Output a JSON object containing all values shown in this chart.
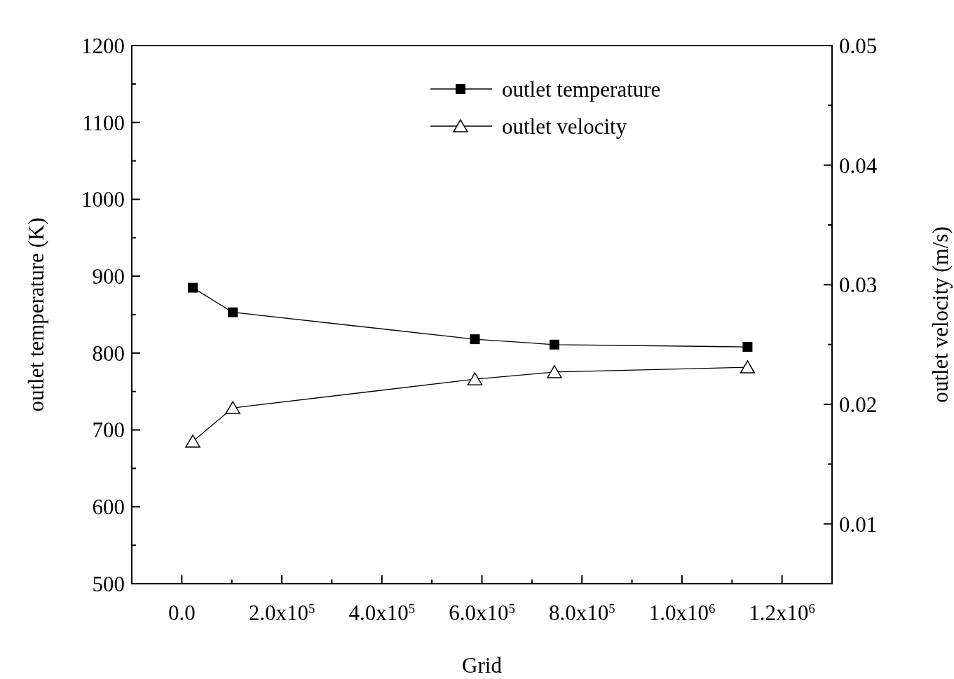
{
  "chart_data": {
    "type": "line",
    "xlabel": "Grid",
    "ylabel": "outlet temperature (K)",
    "y2label": "outlet velocity (m/s)",
    "xlim": [
      -100000,
      1300000
    ],
    "xticks": [
      {
        "value": 0,
        "label": "0.0"
      },
      {
        "value": 200000,
        "label": "2.0x10$^{5}$"
      },
      {
        "value": 400000,
        "label": "4.0x10$^{5}$"
      },
      {
        "value": 600000,
        "label": "6.0x10$^{5}$"
      },
      {
        "value": 800000,
        "label": "8.0x10$^{5}$"
      },
      {
        "value": 1000000,
        "label": "1.0x10$^{6}$"
      },
      {
        "value": 1200000,
        "label": "1.2x10$^{6}$"
      }
    ],
    "ylim": [
      500,
      1200
    ],
    "yticks": [
      500,
      600,
      700,
      800,
      900,
      1000,
      1100,
      1200
    ],
    "y2lim": [
      0.005,
      0.05
    ],
    "y2ticks": [
      0.01,
      0.02,
      0.03,
      0.04,
      0.05
    ],
    "legend": "top right",
    "grid": false,
    "series": [
      {
        "name": "outlet temperature",
        "color": "#000000",
        "marker": "square",
        "x": [
          22000,
          102000,
          586000,
          745000,
          1131000
        ],
        "values": [
          885,
          853,
          818,
          811,
          808
        ]
      },
      {
        "name": "outlet velocity",
        "color": "#000000",
        "marker": "triangle",
        "axis": "y2",
        "x": [
          22000,
          102000,
          586000,
          745000,
          1131000
        ],
        "values": [
          0.0169,
          0.0197,
          0.0221,
          0.0227,
          0.0231
        ]
      }
    ]
  }
}
